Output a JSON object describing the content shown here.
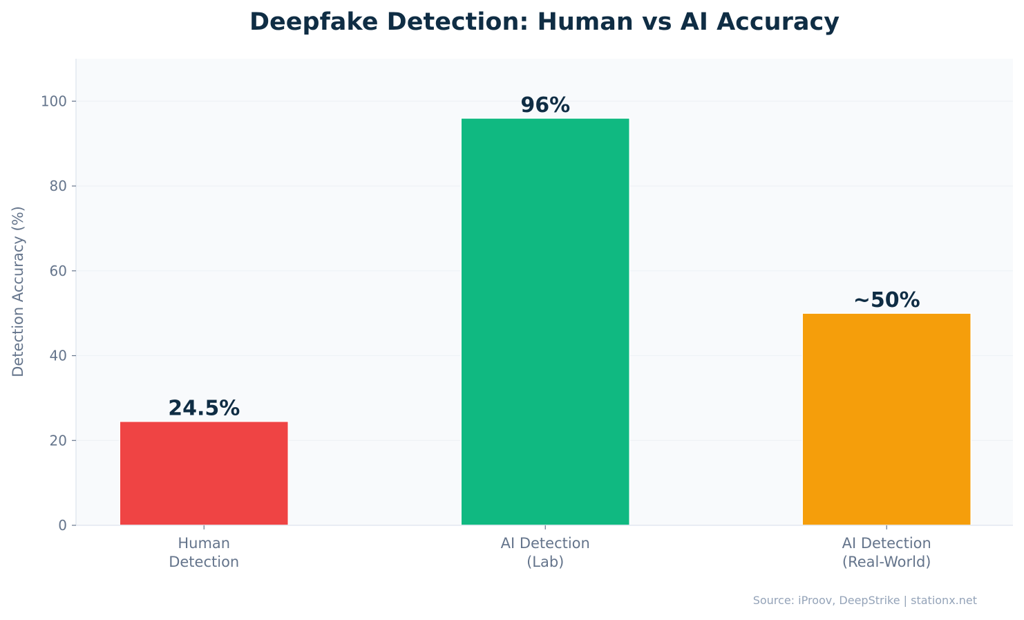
{
  "chart_data": {
    "type": "bar",
    "title": "Deepfake Detection: Human vs AI Accuracy",
    "xlabel": "",
    "ylabel": "Detection Accuracy (%)",
    "categories": [
      "Human\nDetection",
      "AI Detection\n(Lab)",
      "AI Detection\n(Real-World)"
    ],
    "values": [
      24.5,
      96,
      50
    ],
    "data_labels": [
      "24.5%",
      "96%",
      "~50%"
    ],
    "colors": [
      "#ef4444",
      "#10b981",
      "#f59e0b"
    ],
    "ylim": [
      0,
      110
    ],
    "yticks": [
      0,
      20,
      40,
      60,
      80,
      100
    ],
    "grid": "horizontal",
    "legend": "none",
    "plot_background": "#f8fafc",
    "source": "Source: iProov, DeepStrike | stationx.net"
  }
}
